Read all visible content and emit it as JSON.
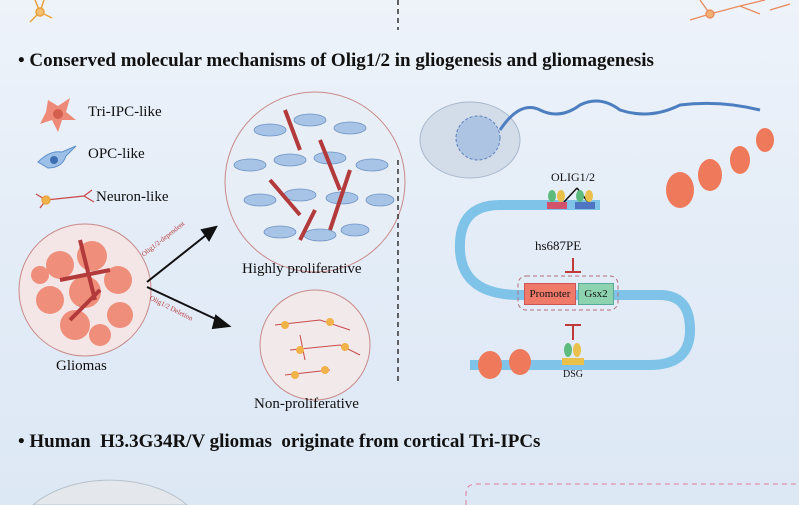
{
  "section1": {
    "bullet": "•",
    "title": "Conserved molecular mechanisms of Olig1/2 in gliogenesis and gliomagenesis",
    "legend": [
      {
        "label": "Tri-IPC-like",
        "icon": "tri-ipc-cell-icon",
        "color": "#ee8a78"
      },
      {
        "label": "OPC-like",
        "icon": "opc-cell-icon",
        "color": "#8fb6e3"
      },
      {
        "label": "Neuron-like",
        "icon": "neuron-cell-icon",
        "color": "#e9a23b"
      }
    ],
    "gliomas_label": "Gliomas",
    "arrow_upper_label": "Olig1/2-dependent",
    "arrow_lower_label": "Olig1/2 Deletion",
    "upper_outcome": "Highly proliferative",
    "lower_outcome": "Non-proliferative",
    "mechanism": {
      "factor_label": "OLIG1/2",
      "enhancer_label": "hs687PE",
      "promoter_label": "Promoter",
      "gene_label": "Gsx2",
      "dsg_label": "DSG",
      "promoter_color": "#f07a6a",
      "gene_color": "#8ed3b0"
    }
  },
  "section2": {
    "bullet": "•",
    "title": "Human  H3.3G34R/V gliomas  originate from cortical Tri-IPCs"
  }
}
